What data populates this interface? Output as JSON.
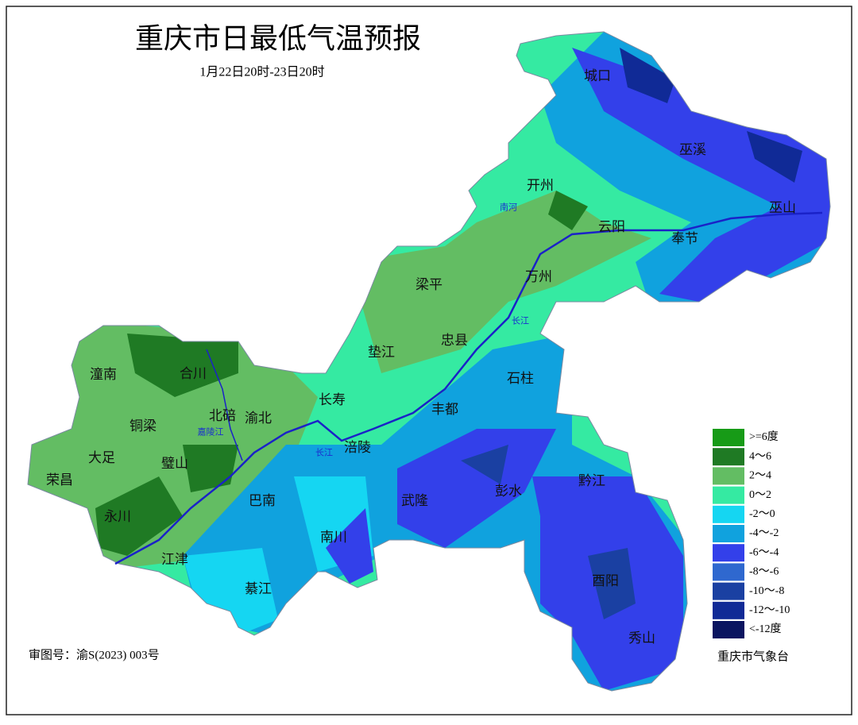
{
  "title": "重庆市日最低气温预报",
  "subtitle": "1月22日20时-23日20时",
  "legend": [
    {
      "label": ">=6度",
      "color": "#179b17"
    },
    {
      "label": "4～6",
      "color": "#1f7a24"
    },
    {
      "label": "2～4",
      "color": "#63bd63"
    },
    {
      "label": "0～2",
      "color": "#35eaa2"
    },
    {
      "label": "-2～0",
      "color": "#15d6f2"
    },
    {
      "label": "-4～-2",
      "color": "#10a2de"
    },
    {
      "label": "-6～-4",
      "color": "#3340ea"
    },
    {
      "label": "-8～-6",
      "color": "#2f68cf"
    },
    {
      "label": "-10～-8",
      "color": "#1a40a2"
    },
    {
      "label": "-12～-10",
      "color": "#102a96"
    },
    {
      "label": "<-12度",
      "color": "#0a1560"
    }
  ],
  "places": [
    "城口",
    "巫溪",
    "开州",
    "云阳",
    "巫山",
    "奉节",
    "梁平",
    "万州",
    "忠县",
    "垫江",
    "石柱",
    "长寿",
    "丰都",
    "潼南",
    "合川",
    "北碚",
    "渝北",
    "铜梁",
    "大足",
    "璧山",
    "涪陵",
    "荣昌",
    "巴南",
    "武隆",
    "彭水",
    "黔江",
    "永川",
    "南川",
    "江津",
    "綦江",
    "酉阳",
    "秀山"
  ],
  "rivers": [
    "南河",
    "长江",
    "长江",
    "嘉陵江"
  ],
  "approval": "审图号：渝S(2023) 003号",
  "agency": "重庆市气象台"
}
